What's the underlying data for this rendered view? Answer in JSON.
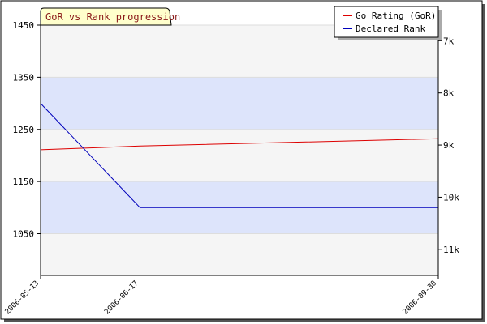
{
  "chart_data": {
    "type": "line",
    "title": "GoR vs Rank progression",
    "x": [
      "2006-05-13",
      "2006-06-17",
      "2006-09-30"
    ],
    "x_days": [
      0,
      35,
      140
    ],
    "left_axis": {
      "ticks": [
        1050,
        1150,
        1250,
        1350,
        1450
      ],
      "ylim": [
        970,
        1450
      ]
    },
    "right_axis": {
      "ticks": [
        "7k",
        "8k",
        "9k",
        "10k",
        "11k"
      ],
      "tick_values": [
        1420,
        1320,
        1220,
        1120,
        1020
      ]
    },
    "series": [
      {
        "name": "Go Rating (GoR)",
        "axis": "left",
        "color": "#dd0000",
        "points": [
          [
            0,
            1211
          ],
          [
            35,
            1218
          ],
          [
            140,
            1232
          ]
        ]
      },
      {
        "name": "Declared Rank",
        "axis": "left",
        "color": "#0000bb",
        "points": [
          [
            0,
            1300
          ],
          [
            35,
            1100
          ],
          [
            140,
            1100
          ]
        ]
      }
    ],
    "bands": [
      {
        "from": 1250,
        "to": 1350,
        "color": "#dde4fb"
      },
      {
        "from": 1050,
        "to": 1150,
        "color": "#dde4fb"
      }
    ],
    "legend": {
      "placement": "top-right"
    },
    "grid": true
  }
}
